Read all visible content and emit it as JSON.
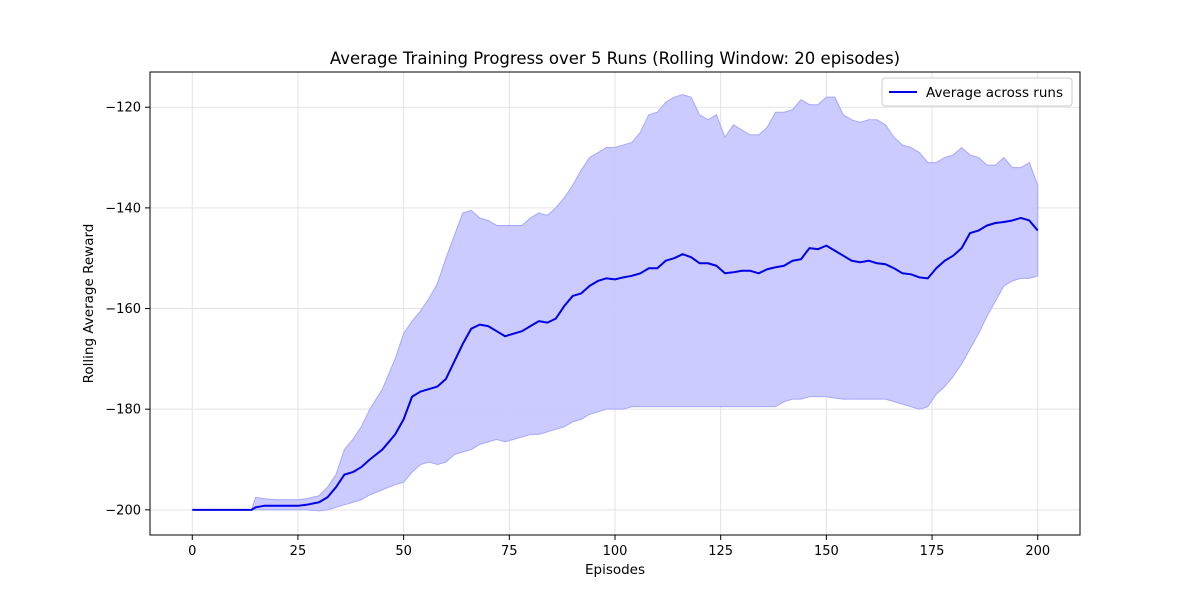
{
  "chart_data": {
    "type": "line",
    "title": "Average Training Progress over 5 Runs (Rolling Window: 20 episodes)",
    "xlabel": "Episodes",
    "ylabel": "Rolling Average Reward",
    "xlim": [
      -10,
      210
    ],
    "ylim": [
      -205,
      -113
    ],
    "xticks": [
      0,
      25,
      50,
      75,
      100,
      125,
      150,
      175,
      200
    ],
    "yticks": [
      -200,
      -180,
      -160,
      -140,
      -120
    ],
    "grid": true,
    "legend_position": "top-right",
    "colors": {
      "line": "#0000e6",
      "band_fill": "#c8c8ff",
      "band_edge": "#a6a6ff",
      "grid": "#e3e3e3"
    },
    "series": [
      {
        "name": "Average across runs",
        "x": [
          0,
          14,
          15,
          17,
          20,
          25,
          27,
          30,
          32,
          34,
          36,
          38,
          40,
          42,
          45,
          48,
          50,
          52,
          54,
          56,
          58,
          60,
          62,
          64,
          66,
          68,
          70,
          72,
          74,
          76,
          78,
          80,
          82,
          84,
          86,
          88,
          90,
          92,
          94,
          96,
          98,
          100,
          102,
          104,
          106,
          108,
          110,
          112,
          114,
          116,
          118,
          120,
          122,
          124,
          126,
          128,
          130,
          132,
          134,
          136,
          138,
          140,
          142,
          144,
          146,
          148,
          150,
          152,
          154,
          156,
          158,
          160,
          162,
          164,
          166,
          168,
          170,
          172,
          174,
          176,
          178,
          180,
          182,
          184,
          186,
          188,
          190,
          192,
          194,
          196,
          198,
          200
        ],
        "y": [
          -200,
          -200,
          -199.5,
          -199.2,
          -199.2,
          -199.2,
          -199,
          -198.5,
          -197.5,
          -195.5,
          -193,
          -192.5,
          -191.5,
          -190,
          -188,
          -185,
          -182,
          -177.5,
          -176.5,
          -176,
          -175.5,
          -174,
          -170.5,
          -167,
          -164,
          -163.2,
          -163.5,
          -164.5,
          -165.5,
          -165,
          -164.5,
          -163.5,
          -162.5,
          -162.8,
          -162,
          -159.5,
          -157.5,
          -157,
          -155.5,
          -154.5,
          -154,
          -154.2,
          -153.8,
          -153.5,
          -153,
          -152,
          -152,
          -150.5,
          -150,
          -149.2,
          -149.8,
          -151,
          -151,
          -151.5,
          -153,
          -152.8,
          -152.5,
          -152.5,
          -153,
          -152.2,
          -151.8,
          -151.5,
          -150.5,
          -150.2,
          -148,
          -148.2,
          -147.5,
          -148.5,
          -149.5,
          -150.5,
          -150.8,
          -150.5,
          -151,
          -151.2,
          -152,
          -153,
          -153.2,
          -153.8,
          -154,
          -152,
          -150.5,
          -149.5,
          -148,
          -145,
          -144.5,
          -143.5,
          -143,
          -142.8,
          -142.5,
          -142,
          -142.5,
          -144.5
        ],
        "upper": [
          -200,
          -200,
          -197.5,
          -197.8,
          -198,
          -198,
          -197.8,
          -197.2,
          -195.5,
          -193,
          -188,
          -186,
          -183.5,
          -180,
          -176,
          -170,
          -165,
          -162.5,
          -160.5,
          -158,
          -155,
          -150,
          -145.5,
          -141,
          -140.5,
          -142,
          -142.5,
          -143.5,
          -143.5,
          -143.5,
          -143.5,
          -142,
          -141,
          -141.5,
          -140,
          -138,
          -135.5,
          -132.5,
          -130,
          -129,
          -128,
          -128,
          -127.5,
          -127,
          -125,
          -121.5,
          -121,
          -119,
          -118,
          -117.5,
          -118,
          -121.5,
          -122.5,
          -121.5,
          -126,
          -123.5,
          -124.5,
          -125.5,
          -125.5,
          -124,
          -121,
          -121,
          -120.5,
          -118.5,
          -119.5,
          -119.5,
          -118,
          -118,
          -121.5,
          -122.5,
          -123,
          -122.5,
          -122.5,
          -123.5,
          -126,
          -127.5,
          -128,
          -129,
          -131,
          -131,
          -130,
          -129.5,
          -128,
          -129.5,
          -130,
          -131.5,
          -131.5,
          -130,
          -132,
          -132,
          -131,
          -135.5
        ],
        "lower": [
          -200,
          -200,
          -200,
          -200,
          -200,
          -200,
          -200,
          -200.2,
          -200,
          -199.5,
          -199,
          -198.5,
          -198,
          -197,
          -196,
          -195,
          -194.5,
          -192.5,
          -191,
          -190.5,
          -191,
          -190.5,
          -189,
          -188.5,
          -188,
          -187,
          -186.5,
          -186,
          -186.5,
          -186,
          -185.5,
          -185,
          -185,
          -184.5,
          -184,
          -183.5,
          -182.5,
          -182,
          -181,
          -180.5,
          -180,
          -180,
          -180,
          -179.5,
          -179.5,
          -179.5,
          -179.5,
          -179.5,
          -179.5,
          -179.5,
          -179.5,
          -179.5,
          -179.5,
          -179.5,
          -179.5,
          -179.5,
          -179.5,
          -179.5,
          -179.5,
          -179.5,
          -179.5,
          -178.5,
          -178,
          -178,
          -177.5,
          -177.5,
          -177.5,
          -177.8,
          -178,
          -178,
          -178,
          -178,
          -178,
          -178,
          -178.5,
          -179,
          -179.5,
          -180,
          -179.5,
          -177,
          -175.5,
          -173.5,
          -171,
          -168,
          -165,
          -161.5,
          -158.5,
          -155.5,
          -154.5,
          -154,
          -154,
          -153.5
        ]
      }
    ]
  }
}
